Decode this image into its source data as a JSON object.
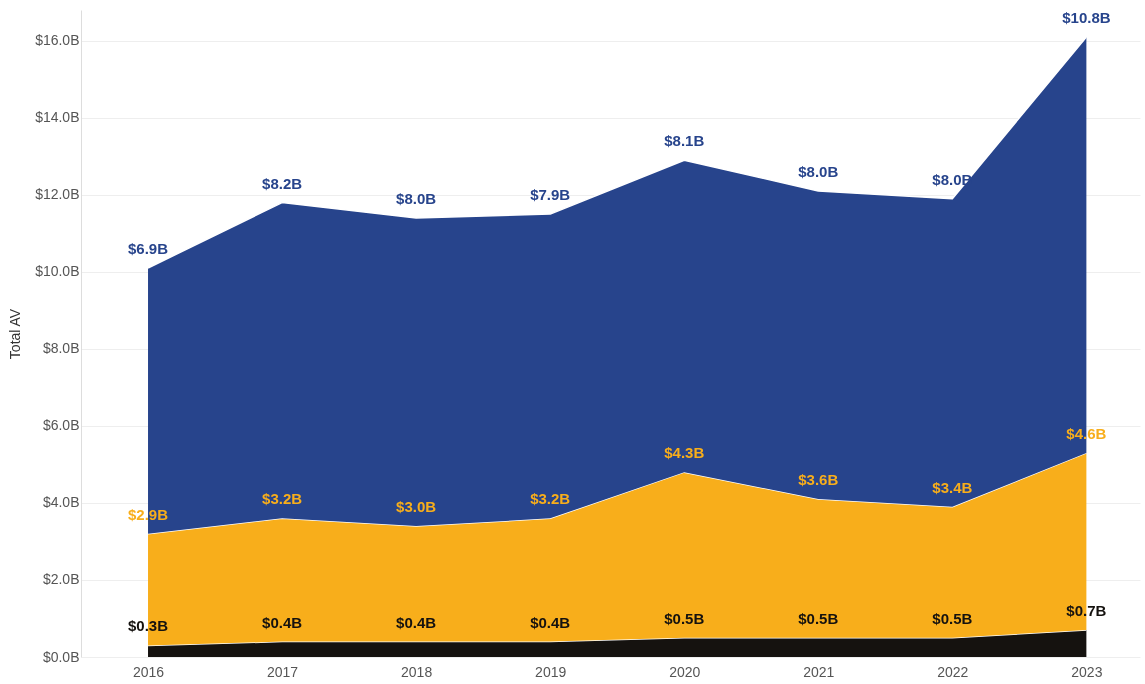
{
  "chart_data": {
    "type": "area",
    "stacked": true,
    "ylabel": "Total AV",
    "x": [
      2016,
      2017,
      2018,
      2019,
      2020,
      2021,
      2022,
      2023
    ],
    "xlim": [
      2015.5,
      2023.4
    ],
    "xticks": [
      2016,
      2017,
      2018,
      2019,
      2020,
      2021,
      2022,
      2023
    ],
    "ylim": [
      0,
      16.8
    ],
    "yticks": [
      {
        "value": 0,
        "label": "$0.0B"
      },
      {
        "value": 2,
        "label": "$2.0B"
      },
      {
        "value": 4,
        "label": "$4.0B"
      },
      {
        "value": 6,
        "label": "$6.0B"
      },
      {
        "value": 8,
        "label": "$8.0B"
      },
      {
        "value": 10,
        "label": "$10.0B"
      },
      {
        "value": 12,
        "label": "$12.0B"
      },
      {
        "value": 14,
        "label": "$14.0B"
      },
      {
        "value": 16,
        "label": "$16.0B"
      }
    ],
    "grid": "y",
    "series": [
      {
        "color": "#15120f",
        "values": [
          0.3,
          0.4,
          0.4,
          0.4,
          0.5,
          0.5,
          0.5,
          0.7
        ],
        "value_labels": [
          "$0.3B",
          "$0.4B",
          "$0.4B",
          "$0.4B",
          "$0.5B",
          "$0.5B",
          "$0.5B",
          "$0.7B"
        ]
      },
      {
        "color": "#f8ae1b",
        "values": [
          2.9,
          3.2,
          3.0,
          3.2,
          4.3,
          3.6,
          3.4,
          4.6
        ],
        "value_labels": [
          "$2.9B",
          "$3.2B",
          "$3.0B",
          "$3.2B",
          "$4.3B",
          "$3.6B",
          "$3.4B",
          "$4.6B"
        ]
      },
      {
        "color": "#27448c",
        "values": [
          6.9,
          8.2,
          8.0,
          7.9,
          8.1,
          8.0,
          8.0,
          10.8
        ],
        "value_labels": [
          "$6.9B",
          "$8.2B",
          "$8.0B",
          "$7.9B",
          "$8.1B",
          "$8.0B",
          "$8.0B",
          "$10.8B"
        ]
      }
    ]
  }
}
